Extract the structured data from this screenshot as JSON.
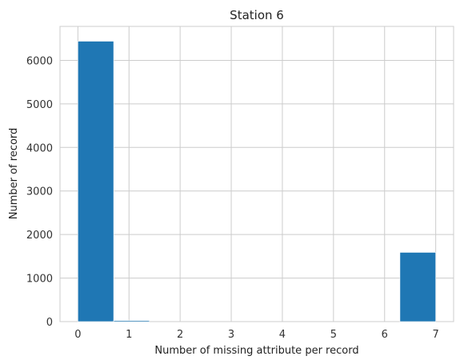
{
  "chart_data": {
    "type": "bar",
    "title": "Station 6",
    "xlabel": "Number of missing attribute per record",
    "ylabel": "Number of record",
    "x_ticks": [
      0,
      1,
      2,
      3,
      4,
      5,
      6,
      7
    ],
    "y_ticks": [
      0,
      1000,
      2000,
      3000,
      4000,
      5000,
      6000
    ],
    "xlim": [
      -0.35,
      7.35
    ],
    "ylim": [
      0,
      6780
    ],
    "bins": [
      {
        "x0": 0.0,
        "x1": 0.7,
        "value": 6440
      },
      {
        "x0": 0.7,
        "x1": 1.4,
        "value": 25
      },
      {
        "x0": 1.4,
        "x1": 2.1,
        "value": 0
      },
      {
        "x0": 2.1,
        "x1": 2.8,
        "value": 0
      },
      {
        "x0": 2.8,
        "x1": 3.5,
        "value": 0
      },
      {
        "x0": 3.5,
        "x1": 4.2,
        "value": 0
      },
      {
        "x0": 4.2,
        "x1": 4.9,
        "value": 0
      },
      {
        "x0": 4.9,
        "x1": 5.6,
        "value": 0
      },
      {
        "x0": 5.6,
        "x1": 6.3,
        "value": 0
      },
      {
        "x0": 6.3,
        "x1": 7.0,
        "value": 1590
      }
    ],
    "grid": true,
    "bar_color": "#1f77b4"
  }
}
